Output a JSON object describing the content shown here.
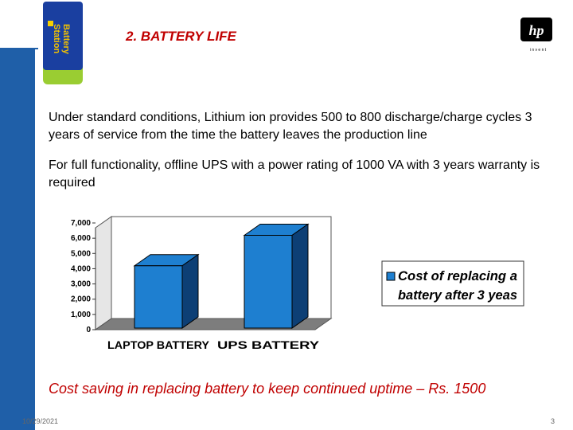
{
  "header": {
    "title": "2. BATTERY LIFE",
    "battery_label_line1": "Battery",
    "battery_label_line2": "Station",
    "logo_text": "hp",
    "logo_tagline": "i n v e n t"
  },
  "body": {
    "paragraph1": "Under standard conditions, Lithium ion provides 500 to 800 discharge/charge cycles 3 years of service from the time the battery leaves the production line",
    "paragraph2": "For full functionality, offline UPS with a power rating of 1000 VA with 3 years warranty is required",
    "conclusion": "Cost saving in replacing battery to keep continued uptime – Rs. 1500"
  },
  "footer": {
    "date": "10/29/2021",
    "page": "3"
  },
  "colors": {
    "accent": "#c00000",
    "bar_face": "#1e7fd0",
    "bar_side": "#0d3f75",
    "sidebar": "#1f5fa8"
  },
  "chart_data": {
    "type": "bar",
    "categories": [
      "LAPTOP BATTERY",
      "UPS BATTERY"
    ],
    "series": [
      {
        "name": "Cost of replacing a battery after 3 yeas",
        "values": [
          4400,
          6400
        ]
      }
    ],
    "ylim": [
      0,
      7000
    ],
    "yticks": [
      "0",
      "1,000",
      "2,000",
      "3,000",
      "4,000",
      "5,000",
      "6,000",
      "7,000"
    ],
    "legend_lines": [
      "Cost of replacing a",
      "battery after 3 yeas"
    ],
    "legend_position": "right",
    "style": "3d",
    "grid": false
  }
}
